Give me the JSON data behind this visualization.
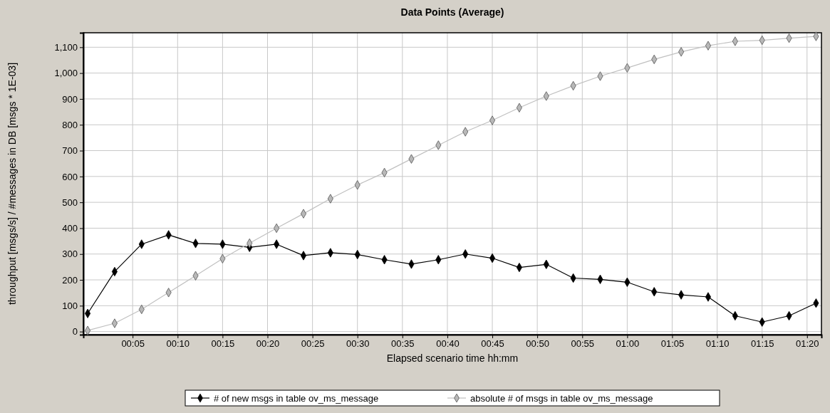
{
  "chart_data": {
    "type": "line",
    "title": "Data Points (Average)",
    "xlabel": "Elapsed scenario time hh:mm",
    "ylabel": "throughput [msgs/s] / #messages in DB [msgs * 1E-03]",
    "x": [
      0,
      0.05,
      0.1,
      0.15,
      0.2,
      0.25,
      0.3,
      0.35,
      0.4,
      0.45,
      0.5,
      0.55,
      0.6,
      0.65,
      0.7,
      0.75,
      0.8,
      0.85,
      0.9,
      0.95,
      1.0,
      1.05,
      1.1,
      1.15,
      1.2,
      1.25,
      1.3,
      1.35
    ],
    "series": [
      {
        "name": "# of new msgs in table ov_ms_message",
        "color": "#000000",
        "values": [
          70,
          232,
          338,
          374,
          341,
          338,
          326,
          338,
          294,
          305,
          298,
          278,
          261,
          278,
          300,
          284,
          248,
          260,
          207,
          202,
          191,
          154,
          142,
          134,
          61,
          37,
          61,
          110
        ]
      },
      {
        "name": "absolute # of msgs in table ov_ms_message",
        "color": "#c0c0c0",
        "values": [
          4,
          32,
          86,
          151,
          216,
          282,
          342,
          400,
          456,
          514,
          567,
          615,
          668,
          721,
          773,
          817,
          866,
          911,
          951,
          988,
          1020,
          1053,
          1082,
          1106,
          1123,
          1127,
          1135,
          1142
        ]
      }
    ],
    "xlim": [
      -0.008,
      1.36
    ],
    "xticks": [
      {
        "value": 0.0833,
        "label": "00:05"
      },
      {
        "value": 0.1667,
        "label": "00:10"
      },
      {
        "value": 0.25,
        "label": "00:15"
      },
      {
        "value": 0.3333,
        "label": "00:20"
      },
      {
        "value": 0.4167,
        "label": "00:25"
      },
      {
        "value": 0.5,
        "label": "00:30"
      },
      {
        "value": 0.5833,
        "label": "00:35"
      },
      {
        "value": 0.6667,
        "label": "00:40"
      },
      {
        "value": 0.75,
        "label": "00:45"
      },
      {
        "value": 0.8333,
        "label": "00:50"
      },
      {
        "value": 0.9167,
        "label": "00:55"
      },
      {
        "value": 1.0,
        "label": "01:00"
      },
      {
        "value": 1.0833,
        "label": "01:05"
      },
      {
        "value": 1.1667,
        "label": "01:10"
      },
      {
        "value": 1.25,
        "label": "01:15"
      },
      {
        "value": 1.3333,
        "label": "01:20"
      }
    ],
    "ylim": [
      -12,
      1156
    ],
    "yticks": [
      0,
      100,
      200,
      300,
      400,
      500,
      600,
      700,
      800,
      900,
      {
        "value": 1000,
        "label": "1,000"
      },
      {
        "value": 1100,
        "label": "1,100"
      }
    ],
    "grid": true,
    "legend": "bottom",
    "marker": "diamond",
    "line_style": "solid"
  }
}
